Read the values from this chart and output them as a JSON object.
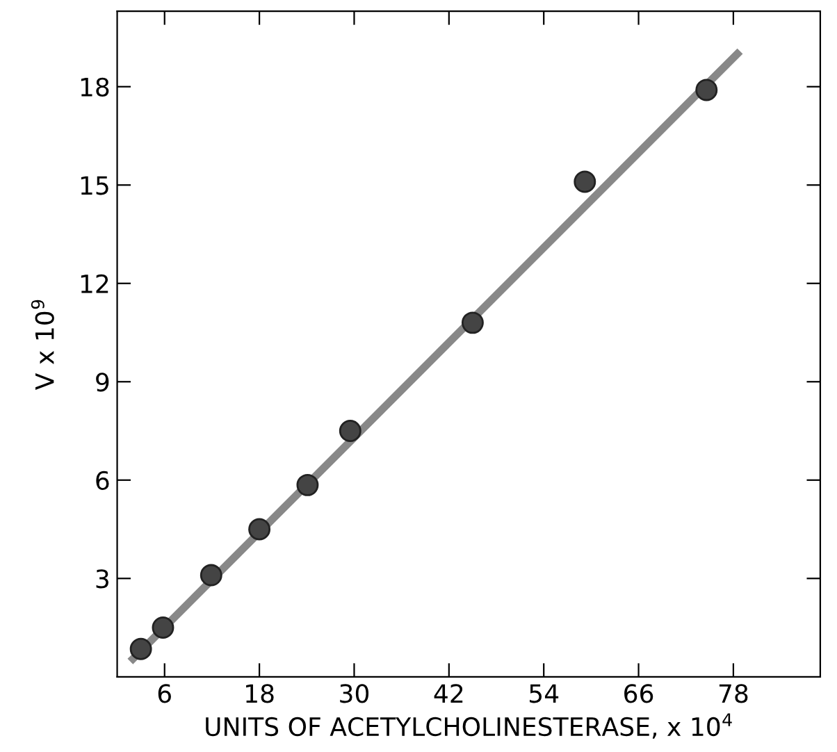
{
  "chart_data": {
    "type": "scatter",
    "xlabel": "UNITS OF ACETYLCHOLINESTERASE, x 10$^{4}$",
    "ylabel": "V x 10$^{9}$",
    "xlim": [
      0,
      89
    ],
    "ylim": [
      0,
      20.3
    ],
    "xticks": [
      6,
      18,
      30,
      42,
      54,
      66,
      78
    ],
    "yticks": [
      3,
      6,
      9,
      12,
      15,
      18
    ],
    "grid": false,
    "marker": "circle",
    "series": [
      {
        "color": "#444444",
        "x": [
          3,
          5.8,
          11.9,
          18,
          24.1,
          29.5,
          45,
          59.2,
          74.6
        ],
        "values": [
          0.85,
          1.5,
          3.1,
          4.5,
          5.85,
          7.5,
          10.8,
          15.1,
          17.9
        ]
      },
      {
        "type": "line",
        "color": "#888888",
        "x": [
          2,
          78.5
        ],
        "values": [
          0.55,
          19.0
        ],
        "marker": "none",
        "line_style": "solid"
      }
    ]
  }
}
